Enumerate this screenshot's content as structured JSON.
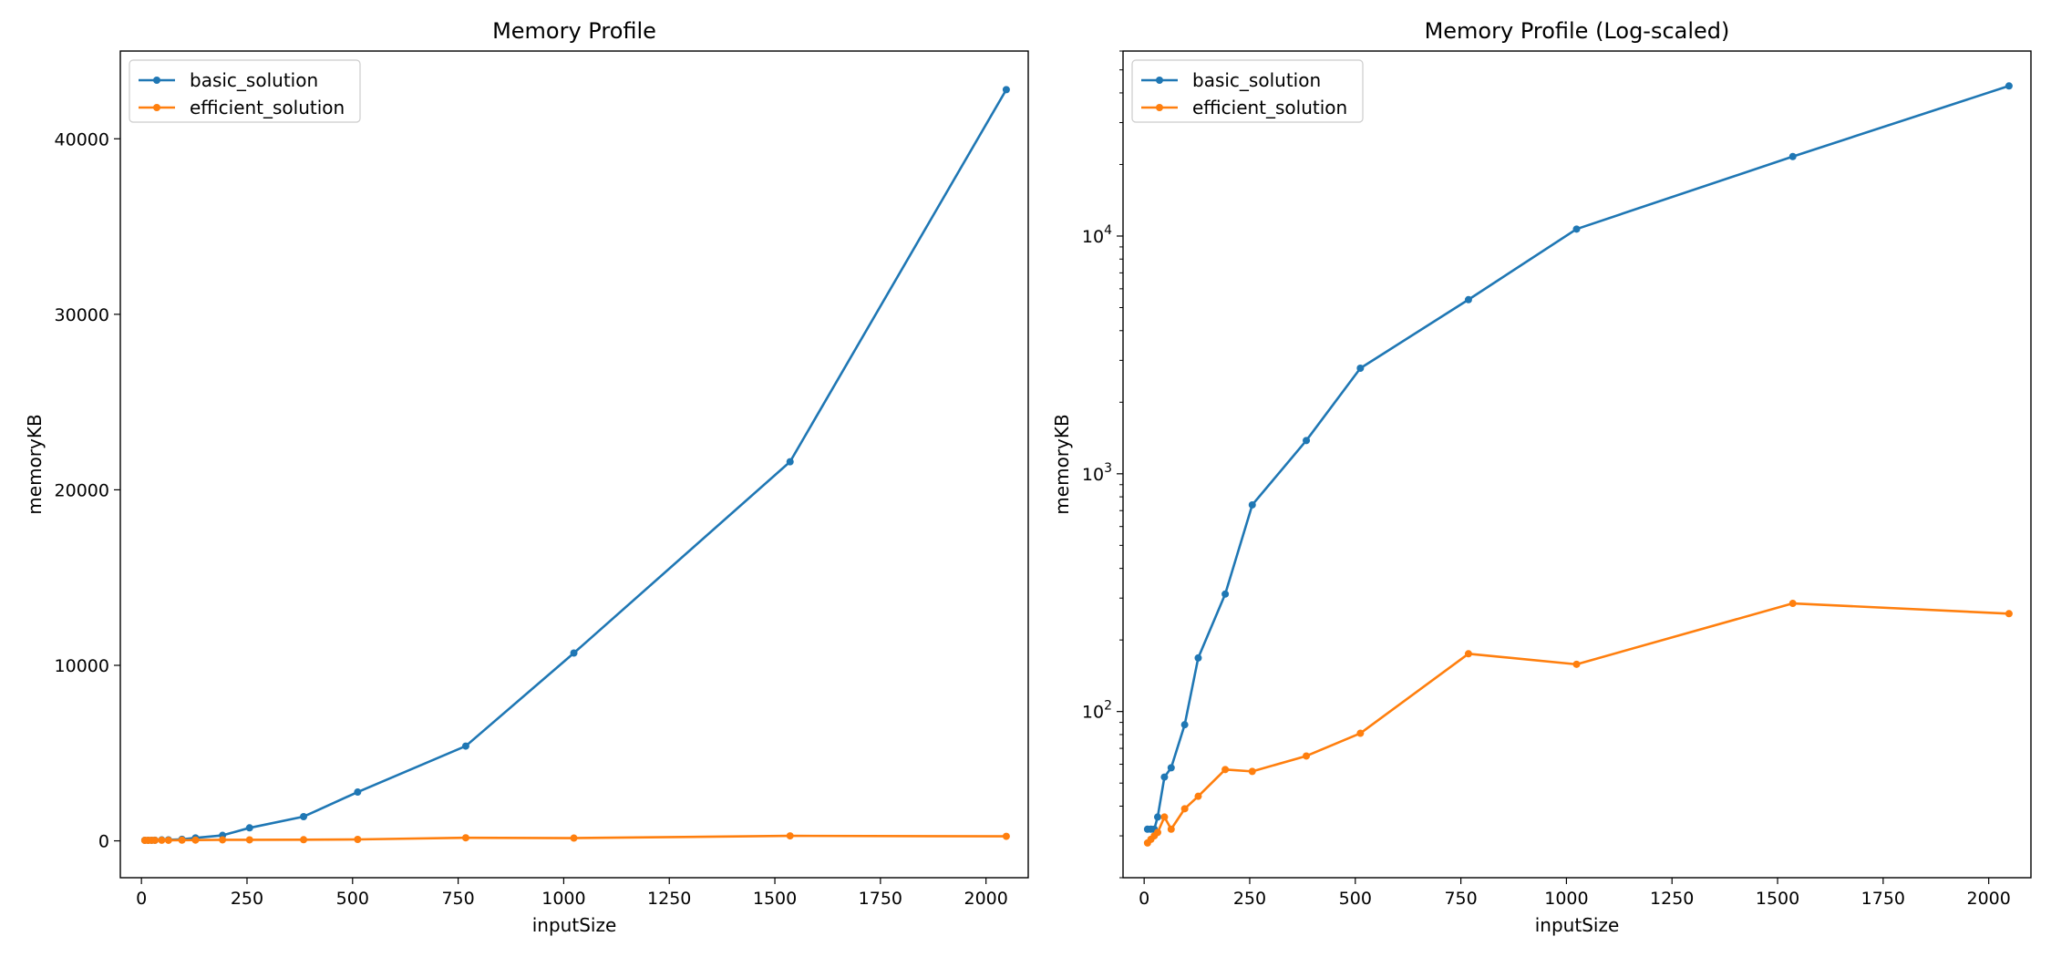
{
  "chart_data": [
    {
      "type": "line",
      "title": "Memory Profile",
      "xlabel": "inputSize",
      "ylabel": "memoryKB",
      "yscale": "linear",
      "xlim": [
        -50,
        2100
      ],
      "ylim": [
        -2100,
        45000
      ],
      "xticks": [
        0,
        250,
        500,
        750,
        1000,
        1250,
        1500,
        1750,
        2000
      ],
      "yticks": [
        0,
        10000,
        20000,
        30000,
        40000
      ],
      "legend_position": "upper left",
      "x": [
        8,
        16,
        24,
        32,
        48,
        64,
        96,
        128,
        192,
        256,
        384,
        512,
        768,
        1024,
        1536,
        2048
      ],
      "series": [
        {
          "name": "basic_solution",
          "color": "#1f77b4",
          "values": [
            32,
            32,
            32,
            36,
            53,
            58,
            88,
            168,
            312,
            740,
            1380,
            2780,
            5400,
            10700,
            21600,
            42800
          ]
        },
        {
          "name": "efficient_solution",
          "color": "#ff7f0e",
          "values": [
            28,
            29,
            30,
            31,
            36,
            32,
            39,
            44,
            57,
            56,
            65,
            81,
            175,
            158,
            285,
            258
          ]
        }
      ]
    },
    {
      "type": "line",
      "title": "Memory Profile (Log-scaled)",
      "xlabel": "inputSize",
      "ylabel": "memoryKB",
      "yscale": "log",
      "xlim": [
        -50,
        2100
      ],
      "ylim": [
        20,
        60000
      ],
      "xticks": [
        0,
        250,
        500,
        750,
        1000,
        1250,
        1500,
        1750,
        2000
      ],
      "yticks": [
        {
          "value": 100,
          "base": "10",
          "exp": "2"
        },
        {
          "value": 1000,
          "base": "10",
          "exp": "3"
        },
        {
          "value": 10000,
          "base": "10",
          "exp": "4"
        }
      ],
      "legend_position": "upper left",
      "x": [
        8,
        16,
        24,
        32,
        48,
        64,
        96,
        128,
        192,
        256,
        384,
        512,
        768,
        1024,
        1536,
        2048
      ],
      "series": [
        {
          "name": "basic_solution",
          "color": "#1f77b4",
          "values": [
            32,
            32,
            32,
            36,
            53,
            58,
            88,
            168,
            312,
            740,
            1380,
            2780,
            5400,
            10700,
            21600,
            42800
          ]
        },
        {
          "name": "efficient_solution",
          "color": "#ff7f0e",
          "values": [
            28,
            29,
            30,
            31,
            36,
            32,
            39,
            44,
            57,
            56,
            65,
            81,
            175,
            158,
            285,
            258
          ]
        }
      ]
    }
  ]
}
